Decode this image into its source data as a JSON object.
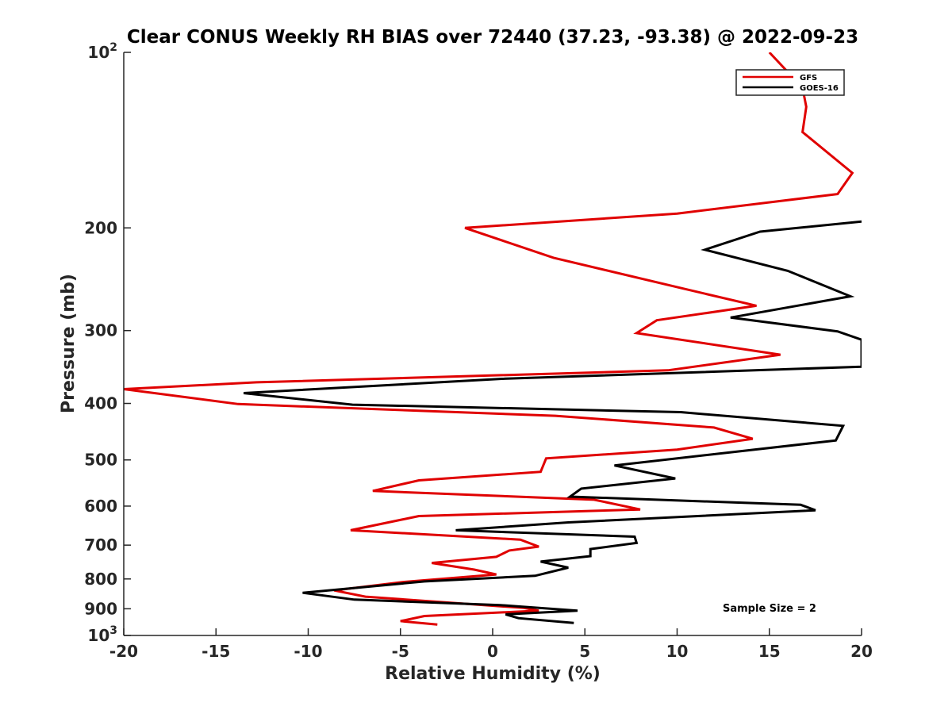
{
  "chart_data": {
    "type": "line",
    "title": "Clear CONUS Weekly RH BIAS over 72440 (37.23, -93.38) @ 2022-09-23",
    "xlabel": "Relative Humidity (%)",
    "ylabel": "Pressure (mb)",
    "xlim": [
      -20,
      20
    ],
    "ylim": [
      100,
      1000
    ],
    "y_scale": "log",
    "y_reversed": true,
    "grid": false,
    "legend_position": "top-right",
    "x_ticks": [
      "-20",
      "-15",
      "-10",
      "-5",
      "0",
      "5",
      "10",
      "15",
      "20"
    ],
    "y_ticks": [
      {
        "value": 100,
        "base": "10",
        "exp": "2",
        "text": ""
      },
      {
        "value": 200,
        "base": "",
        "exp": "",
        "text": "200"
      },
      {
        "value": 300,
        "base": "",
        "exp": "",
        "text": "300"
      },
      {
        "value": 400,
        "base": "",
        "exp": "",
        "text": "400"
      },
      {
        "value": 500,
        "base": "",
        "exp": "",
        "text": "500"
      },
      {
        "value": 600,
        "base": "",
        "exp": "",
        "text": "600"
      },
      {
        "value": 700,
        "base": "",
        "exp": "",
        "text": "700"
      },
      {
        "value": 800,
        "base": "",
        "exp": "",
        "text": "800"
      },
      {
        "value": 900,
        "base": "",
        "exp": "",
        "text": "900"
      },
      {
        "value": 1000,
        "base": "10",
        "exp": "3",
        "text": ""
      }
    ],
    "series": [
      {
        "name": "GFS",
        "color": "#e00000",
        "points": [
          [
            15.0,
            100
          ],
          [
            16.8,
            115
          ],
          [
            17.0,
            124
          ],
          [
            16.8,
            137
          ],
          [
            19.5,
            161
          ],
          [
            18.7,
            175
          ],
          [
            10.0,
            189
          ],
          [
            -1.5,
            200
          ],
          [
            3.3,
            225
          ],
          [
            10.3,
            254
          ],
          [
            14.3,
            272
          ],
          [
            8.9,
            288
          ],
          [
            7.8,
            303
          ],
          [
            15.6,
            330
          ],
          [
            9.5,
            351
          ],
          [
            -12.8,
            368
          ],
          [
            -20.0,
            378
          ],
          [
            -13.8,
            401
          ],
          [
            3.4,
            420
          ],
          [
            12.0,
            440
          ],
          [
            14.1,
            460
          ],
          [
            10.0,
            480
          ],
          [
            2.9,
            497
          ],
          [
            2.6,
            524
          ],
          [
            -4.0,
            542
          ],
          [
            -6.5,
            565
          ],
          [
            5.5,
            585
          ],
          [
            8.0,
            608
          ],
          [
            -4.0,
            624
          ],
          [
            -7.7,
            660
          ],
          [
            1.5,
            685
          ],
          [
            2.5,
            704
          ],
          [
            0.9,
            715
          ],
          [
            0.2,
            733
          ],
          [
            -3.3,
            751
          ],
          [
            -1.0,
            771
          ],
          [
            0.2,
            786
          ],
          [
            -4.9,
            810
          ],
          [
            -8.6,
            837
          ],
          [
            -6.9,
            858
          ],
          [
            1.7,
            897
          ],
          [
            2.5,
            907
          ],
          [
            -3.7,
            926
          ],
          [
            -5.0,
            945
          ],
          [
            -3.0,
            958
          ]
        ]
      },
      {
        "name": "GOES-16",
        "color": "#000000",
        "points": [
          [
            20.0,
            195
          ],
          [
            14.5,
            203
          ],
          [
            11.5,
            218
          ],
          [
            16.0,
            237
          ],
          [
            19.4,
            262
          ],
          [
            12.9,
            285
          ],
          [
            18.7,
            301
          ],
          [
            20.0,
            311
          ],
          [
            20.0,
            346
          ],
          [
            0.5,
            363
          ],
          [
            -13.5,
            384
          ],
          [
            -7.6,
            402
          ],
          [
            10.2,
            414
          ],
          [
            19.0,
            437
          ],
          [
            18.6,
            463
          ],
          [
            6.6,
            511
          ],
          [
            9.9,
            538
          ],
          [
            4.8,
            560
          ],
          [
            4.2,
            578
          ],
          [
            16.7,
            597
          ],
          [
            17.5,
            610
          ],
          [
            4.1,
            640
          ],
          [
            -2.0,
            660
          ],
          [
            7.7,
            677
          ],
          [
            7.8,
            694
          ],
          [
            5.3,
            711
          ],
          [
            5.3,
            731
          ],
          [
            2.6,
            747
          ],
          [
            4.1,
            765
          ],
          [
            2.3,
            790
          ],
          [
            -3.7,
            808
          ],
          [
            -10.3,
            845
          ],
          [
            -7.5,
            868
          ],
          [
            0.4,
            887
          ],
          [
            4.6,
            907
          ],
          [
            0.7,
            920
          ],
          [
            1.4,
            934
          ],
          [
            4.4,
            952
          ]
        ]
      }
    ],
    "legend": [
      "GFS",
      "GOES-16"
    ],
    "annotation": "Sample Size = 2"
  }
}
